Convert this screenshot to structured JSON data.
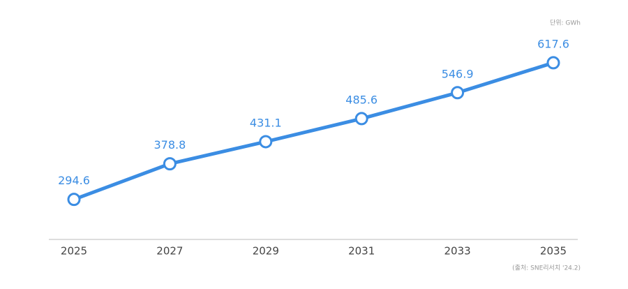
{
  "chart_data": {
    "type": "line",
    "unit_note": "단위: GWh",
    "source": "(출처: SNE리서치 '24.2)",
    "categories": [
      "2025",
      "2027",
      "2029",
      "2031",
      "2033",
      "2035"
    ],
    "values": [
      294.6,
      378.8,
      431.1,
      485.6,
      546.9,
      617.6
    ],
    "color": "#3b8de3",
    "ylim": [
      200,
      700
    ]
  }
}
